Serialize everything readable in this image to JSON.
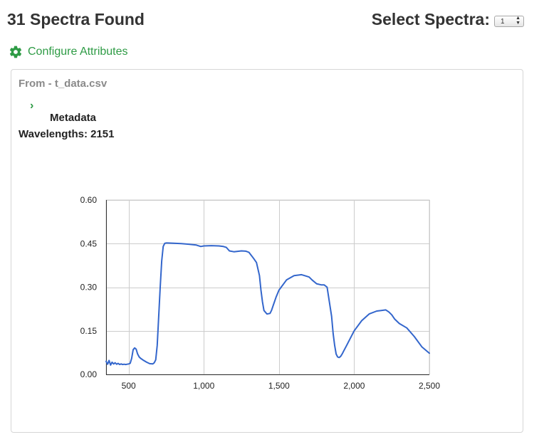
{
  "header": {
    "title": "31 Spectra Found",
    "select_label": "Select Spectra:",
    "select_value": "1"
  },
  "configure": {
    "label": "Configure Attributes",
    "icon": "gear-icon",
    "color": "#2e9b45"
  },
  "panel": {
    "title": "From - t_data.csv",
    "metadata_label": "Metadata",
    "wavelengths_label": "Wavelengths: 2151"
  },
  "chart_data": {
    "type": "line",
    "title": "",
    "xlabel": "",
    "ylabel": "",
    "xlim": [
      350,
      2500
    ],
    "ylim": [
      0,
      0.6
    ],
    "grid": true,
    "x_ticks": [
      500,
      1000,
      1500,
      2000,
      2500
    ],
    "x_tick_labels": [
      "500",
      "1,000",
      "1,500",
      "2,000",
      "2,500"
    ],
    "y_ticks": [
      0,
      0.15,
      0.3,
      0.45,
      0.6
    ],
    "y_tick_labels": [
      "0.00",
      "0.15",
      "0.30",
      "0.45",
      "0.60"
    ],
    "series": [
      {
        "color": "#3366cc",
        "x": [
          350,
          360,
          370,
          380,
          390,
          400,
          410,
          420,
          430,
          440,
          450,
          460,
          470,
          480,
          490,
          500,
          510,
          520,
          530,
          540,
          550,
          560,
          570,
          580,
          600,
          620,
          640,
          660,
          670,
          680,
          690,
          700,
          710,
          720,
          730,
          740,
          750,
          760,
          800,
          850,
          900,
          950,
          980,
          1000,
          1050,
          1100,
          1130,
          1150,
          1170,
          1200,
          1250,
          1280,
          1300,
          1330,
          1350,
          1370,
          1380,
          1390,
          1400,
          1420,
          1440,
          1450,
          1460,
          1480,
          1500,
          1550,
          1600,
          1650,
          1670,
          1700,
          1720,
          1750,
          1780,
          1800,
          1820,
          1850,
          1860,
          1870,
          1880,
          1890,
          1900,
          1910,
          1920,
          1930,
          1950,
          1980,
          2000,
          2050,
          2100,
          2150,
          2180,
          2210,
          2230,
          2250,
          2270,
          2300,
          2350,
          2400,
          2450,
          2500
        ],
        "y": [
          0.045,
          0.035,
          0.048,
          0.032,
          0.042,
          0.036,
          0.04,
          0.035,
          0.038,
          0.034,
          0.036,
          0.034,
          0.035,
          0.034,
          0.035,
          0.036,
          0.038,
          0.055,
          0.085,
          0.091,
          0.087,
          0.07,
          0.06,
          0.055,
          0.048,
          0.042,
          0.037,
          0.036,
          0.04,
          0.05,
          0.1,
          0.2,
          0.3,
          0.39,
          0.44,
          0.451,
          0.452,
          0.452,
          0.451,
          0.45,
          0.448,
          0.445,
          0.44,
          0.442,
          0.443,
          0.442,
          0.44,
          0.437,
          0.425,
          0.422,
          0.425,
          0.424,
          0.42,
          0.4,
          0.385,
          0.34,
          0.29,
          0.25,
          0.22,
          0.208,
          0.21,
          0.22,
          0.235,
          0.265,
          0.29,
          0.325,
          0.34,
          0.343,
          0.34,
          0.335,
          0.325,
          0.312,
          0.308,
          0.308,
          0.3,
          0.2,
          0.14,
          0.1,
          0.07,
          0.06,
          0.058,
          0.062,
          0.07,
          0.08,
          0.1,
          0.13,
          0.15,
          0.185,
          0.208,
          0.218,
          0.22,
          0.222,
          0.215,
          0.205,
          0.19,
          0.175,
          0.16,
          0.13,
          0.095,
          0.073
        ]
      }
    ]
  }
}
